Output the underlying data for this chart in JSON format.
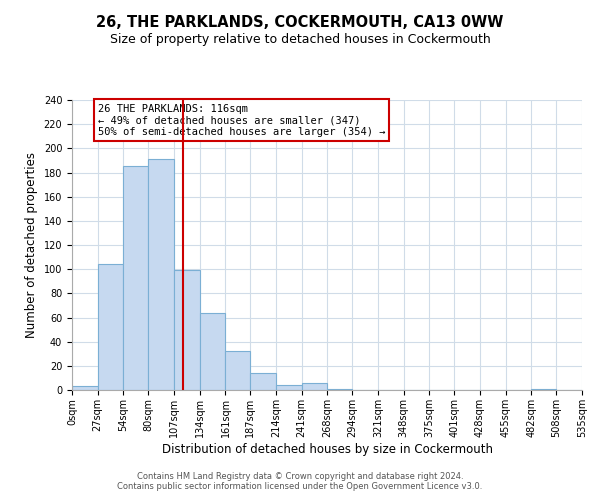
{
  "title": "26, THE PARKLANDS, COCKERMOUTH, CA13 0WW",
  "subtitle": "Size of property relative to detached houses in Cockermouth",
  "xlabel": "Distribution of detached houses by size in Cockermouth",
  "ylabel": "Number of detached properties",
  "bin_edges": [
    0,
    27,
    54,
    80,
    107,
    134,
    161,
    187,
    214,
    241,
    268,
    294,
    321,
    348,
    375,
    401,
    428,
    455,
    482,
    508,
    535
  ],
  "bin_labels": [
    "0sqm",
    "27sqm",
    "54sqm",
    "80sqm",
    "107sqm",
    "134sqm",
    "161sqm",
    "187sqm",
    "214sqm",
    "241sqm",
    "268sqm",
    "294sqm",
    "321sqm",
    "348sqm",
    "375sqm",
    "401sqm",
    "428sqm",
    "455sqm",
    "482sqm",
    "508sqm",
    "535sqm"
  ],
  "bar_heights": [
    3,
    104,
    185,
    191,
    99,
    64,
    32,
    14,
    4,
    6,
    1,
    0,
    0,
    0,
    0,
    0,
    0,
    0,
    1,
    0
  ],
  "bar_color": "#c6d9f0",
  "bar_edge_color": "#7bafd4",
  "property_line_x": 116,
  "property_line_color": "#cc0000",
  "annotation_text": "26 THE PARKLANDS: 116sqm\n← 49% of detached houses are smaller (347)\n50% of semi-detached houses are larger (354) →",
  "annotation_box_color": "#ffffff",
  "annotation_box_edge_color": "#cc0000",
  "ylim": [
    0,
    240
  ],
  "yticks": [
    0,
    20,
    40,
    60,
    80,
    100,
    120,
    140,
    160,
    180,
    200,
    220,
    240
  ],
  "footer_line1": "Contains HM Land Registry data © Crown copyright and database right 2024.",
  "footer_line2": "Contains public sector information licensed under the Open Government Licence v3.0.",
  "bg_color": "#ffffff",
  "grid_color": "#d0dce8",
  "title_fontsize": 10.5,
  "subtitle_fontsize": 9,
  "axis_label_fontsize": 8.5,
  "tick_fontsize": 7,
  "footer_fontsize": 6,
  "annotation_fontsize": 7.5
}
